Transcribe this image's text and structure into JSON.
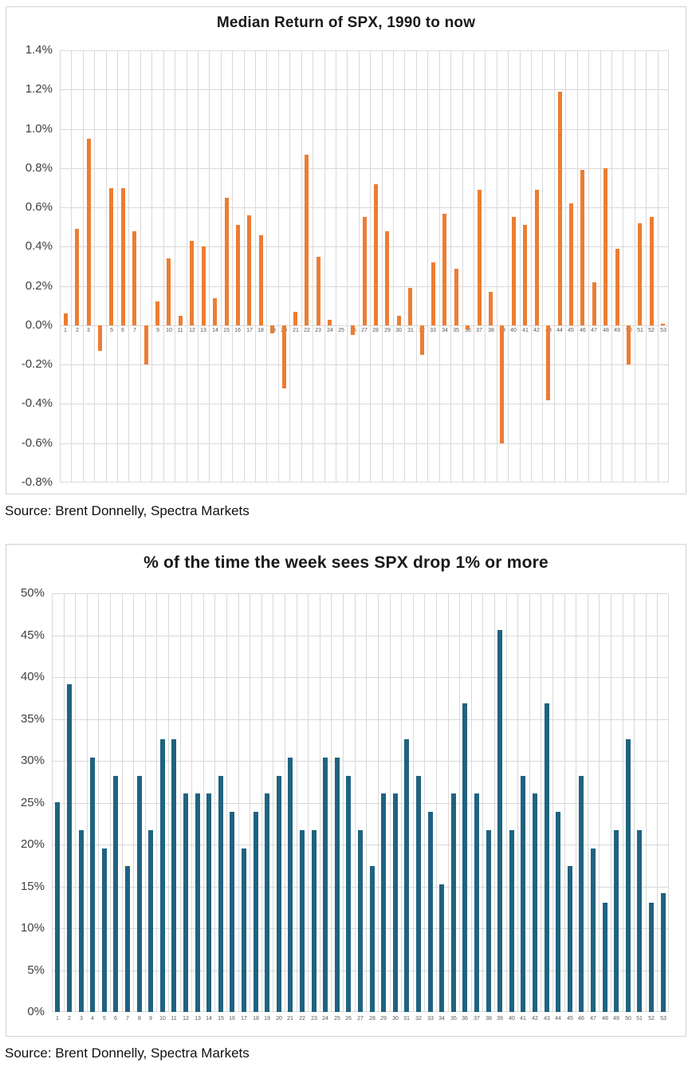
{
  "page": {
    "source_top": "Source: Brent Donnelly, Spectra Markets",
    "source_bottom": "Source: Brent Donnelly, Spectra Markets"
  },
  "colors": {
    "orange_bar": "#ED7D31",
    "teal_bar": "#1F6380",
    "gridline": "#D9D9D9",
    "card_border": "#D2D2D2",
    "title_text": "#1A1A1A",
    "ytick_text": "#404040",
    "xtick_text": "#595959"
  },
  "chart_data": [
    {
      "type": "bar",
      "title": "Median Return of SPX, 1990 to now",
      "xlabel": "",
      "ylabel": "",
      "categories": [
        "1",
        "2",
        "3",
        "4",
        "5",
        "6",
        "7",
        "8",
        "9",
        "10",
        "11",
        "12",
        "13",
        "14",
        "15",
        "16",
        "17",
        "18",
        "19",
        "20",
        "21",
        "22",
        "23",
        "24",
        "25",
        "26",
        "27",
        "28",
        "29",
        "30",
        "31",
        "32",
        "33",
        "34",
        "35",
        "36",
        "37",
        "38",
        "39",
        "40",
        "41",
        "42",
        "43",
        "44",
        "45",
        "46",
        "47",
        "48",
        "49",
        "50",
        "51",
        "52",
        "53"
      ],
      "values": [
        0.06,
        0.49,
        0.95,
        -0.13,
        0.7,
        0.7,
        0.48,
        -0.2,
        0.12,
        0.34,
        0.05,
        0.43,
        0.4,
        0.14,
        0.65,
        0.51,
        0.56,
        0.46,
        -0.04,
        -0.32,
        0.07,
        0.87,
        0.35,
        0.03,
        0.0,
        -0.05,
        0.55,
        0.72,
        0.48,
        0.05,
        0.19,
        -0.15,
        0.32,
        0.57,
        0.29,
        -0.02,
        0.69,
        0.17,
        -0.6,
        0.55,
        0.51,
        0.69,
        -0.38,
        1.19,
        0.62,
        0.79,
        0.22,
        0.8,
        0.39,
        -0.2,
        0.52,
        0.55,
        0.01
      ],
      "ylim": [
        -0.8,
        1.4
      ],
      "ytick_step": 0.2,
      "ytick_decimals": 1,
      "ytick_suffix": "%",
      "grid": true,
      "legend": "none",
      "bar_color": "#ED7D31"
    },
    {
      "type": "bar",
      "title": "% of the time the week sees SPX drop 1% or more",
      "xlabel": "",
      "ylabel": "",
      "categories": [
        "1",
        "2",
        "3",
        "4",
        "5",
        "6",
        "7",
        "8",
        "9",
        "10",
        "11",
        "12",
        "13",
        "14",
        "15",
        "16",
        "17",
        "18",
        "19",
        "20",
        "21",
        "22",
        "23",
        "24",
        "25",
        "26",
        "27",
        "28",
        "29",
        "30",
        "31",
        "32",
        "33",
        "34",
        "35",
        "36",
        "37",
        "38",
        "39",
        "40",
        "41",
        "42",
        "43",
        "44",
        "45",
        "46",
        "47",
        "48",
        "49",
        "50",
        "51",
        "52",
        "53"
      ],
      "values": [
        25.0,
        39.1,
        21.7,
        30.4,
        19.5,
        28.2,
        17.4,
        28.2,
        21.7,
        32.6,
        32.6,
        26.1,
        26.1,
        26.1,
        28.2,
        23.9,
        19.5,
        23.9,
        26.1,
        28.2,
        30.4,
        21.7,
        21.7,
        30.4,
        30.4,
        28.2,
        21.7,
        17.4,
        26.1,
        26.1,
        32.6,
        28.2,
        23.9,
        15.2,
        26.1,
        36.9,
        26.1,
        21.7,
        45.6,
        21.7,
        28.2,
        26.1,
        36.9,
        23.9,
        17.4,
        28.2,
        19.5,
        13.0,
        21.7,
        32.6,
        21.7,
        13.0,
        14.2
      ],
      "ylim": [
        0,
        50
      ],
      "ytick_step": 5,
      "ytick_decimals": 0,
      "ytick_suffix": "%",
      "grid": true,
      "legend": "none",
      "bar_color": "#1F6380"
    }
  ]
}
